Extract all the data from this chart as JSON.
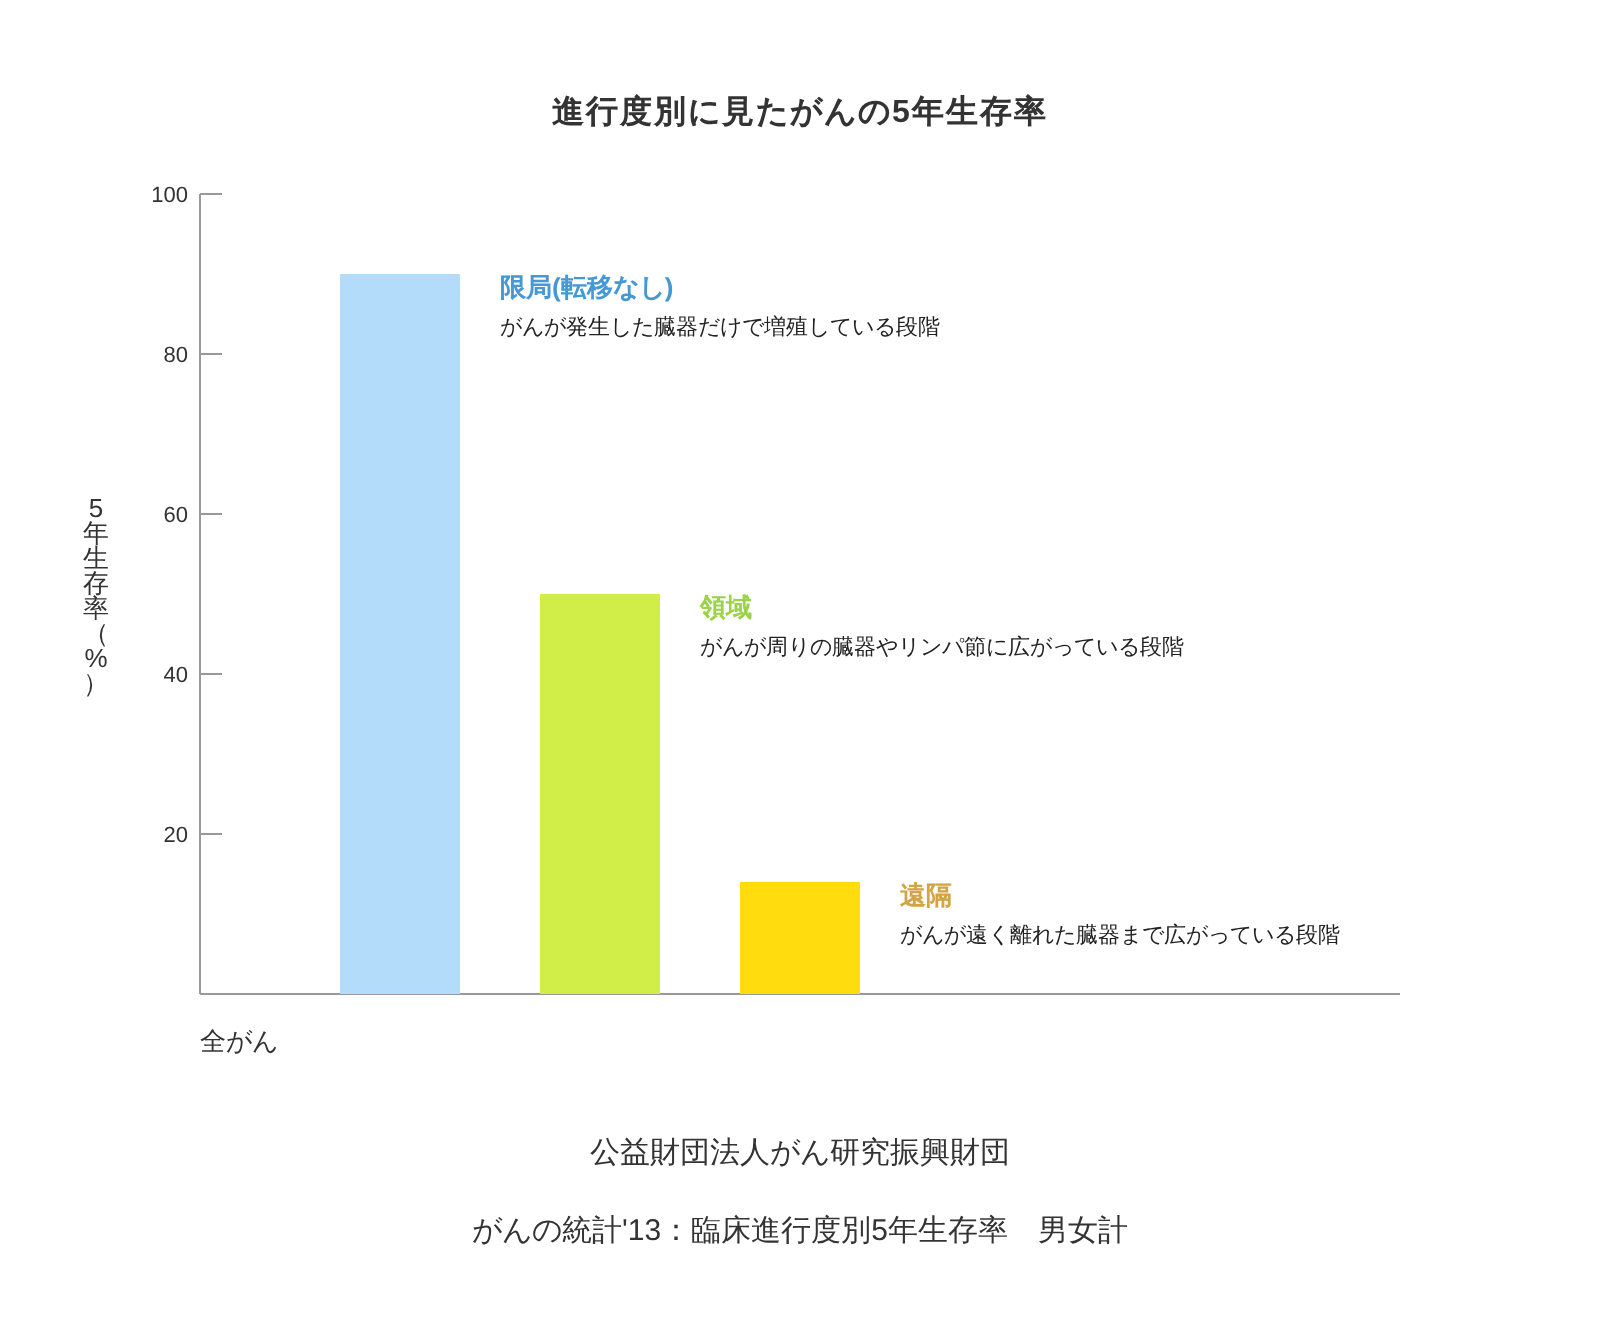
{
  "chart_data": {
    "type": "bar",
    "title": "進行度別に見たがんの5年生存率",
    "xlabel": "全がん",
    "ylabel": "5年生存率（%）",
    "categories": [
      null
    ],
    "series": [
      {
        "name": "限局(転移なし)",
        "color": "#b2dcfa",
        "values": [
          90
        ]
      },
      {
        "name": "領域",
        "color": "#d0ed48",
        "values": [
          50
        ]
      },
      {
        "name": "遠隔",
        "color": "#fedc0e",
        "values": [
          14
        ]
      }
    ],
    "ylim": [
      0,
      100
    ],
    "yticks": [
      20,
      40,
      60,
      80,
      100
    ],
    "annotations": [
      "がんが発生した臓器だけで増殖している段階",
      "がんが周りの臓器やリンパ節に広がっている段階",
      "がんが遠く離れた臓器まで広がっている段階",
      "公益財団法人がん研究振興財団",
      "がんの統計'13：臨床進行度別5年生存率　男女計"
    ]
  }
}
